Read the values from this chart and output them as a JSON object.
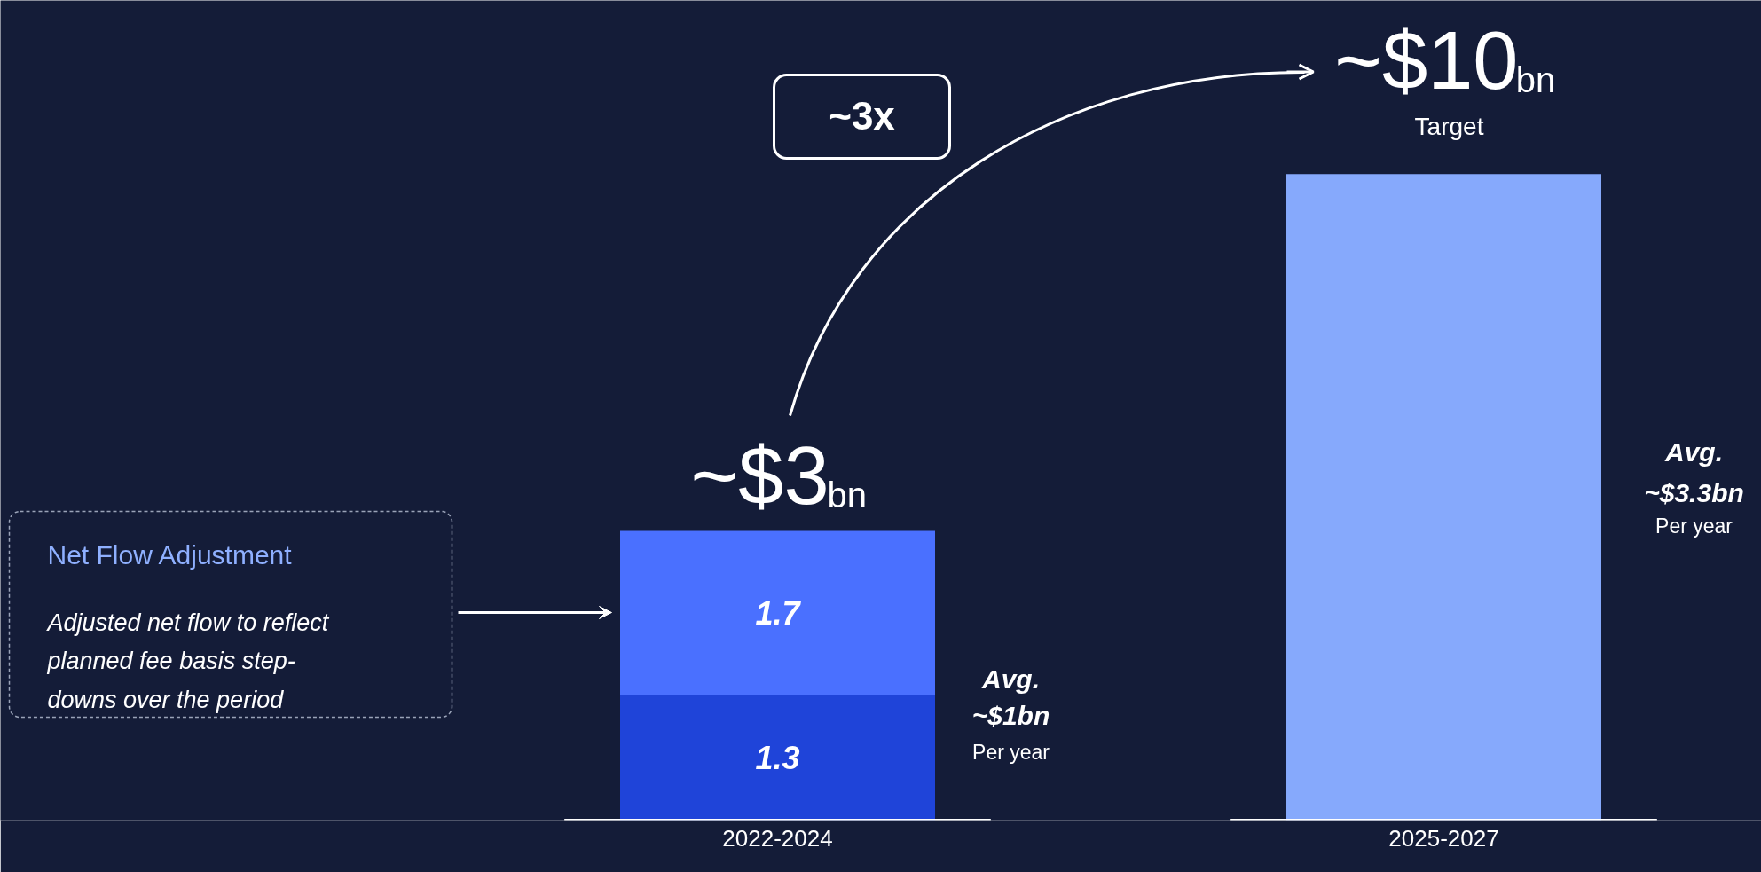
{
  "chart_data": {
    "type": "bar",
    "stacked": true,
    "categories": [
      "2022-2024",
      "2025-2027"
    ],
    "series": [
      {
        "colors": [
          "#1f44d9",
          "#86a9fc"
        ],
        "values": [
          1.3,
          6.7
        ],
        "value_labels": [
          "1.3",
          null
        ]
      },
      {
        "color": "#4a70ff",
        "values": [
          1.7,
          null
        ],
        "value_labels": [
          "1.7",
          null
        ]
      }
    ],
    "ylim": [
      0,
      8.5
    ],
    "tick_labels": "x",
    "grid": false,
    "ref_lines": [
      {
        "axis": "y",
        "value": 0,
        "color": "#ffffff"
      }
    ],
    "annotations": [
      {
        "text": "~$3$_{bn}$",
        "x": "2022-2024",
        "y": 3
      },
      {
        "text": "~$10$_{bn}$",
        "x": "2025-2027",
        "y": 6.7
      },
      "Target",
      "~3x",
      "Avg.",
      "~$1bn",
      "Per year",
      "Avg.",
      "~$3.3bn",
      "Per year",
      "Net Flow Adjustment",
      "Adjusted net flow to reflect\nplanned fee basis step-\ndowns over the period"
    ]
  }
}
